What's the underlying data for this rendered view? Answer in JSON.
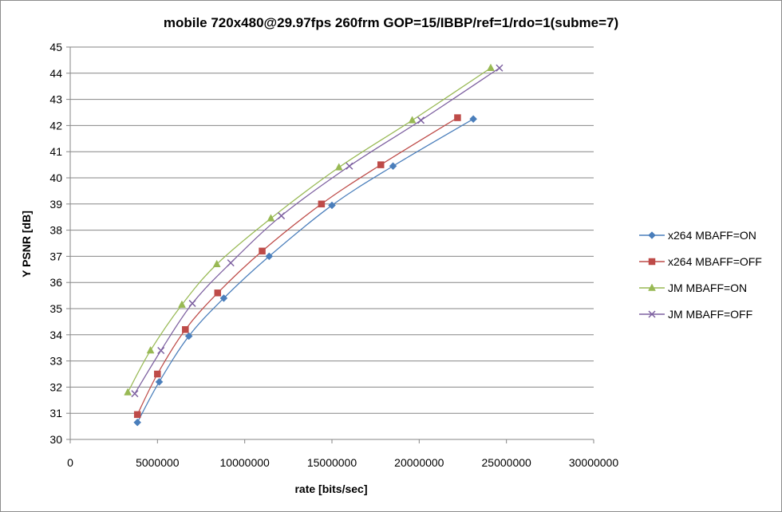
{
  "chart_data": {
    "type": "scatter",
    "title": "mobile 720x480@29.97fps  260frm GOP=15/IBBP/ref=1/rdo=1(subme=7)",
    "xlabel": "rate [bits/sec]",
    "ylabel": "Y PSNR [dB]",
    "xlim": [
      0,
      30000000
    ],
    "ylim": [
      30,
      45
    ],
    "xticks": [
      0,
      5000000,
      10000000,
      15000000,
      20000000,
      25000000,
      30000000
    ],
    "xtick_labels": [
      "0",
      "5000000",
      "10000000",
      "15000000",
      "20000000",
      "25000000",
      "30000000"
    ],
    "yticks": [
      30,
      31,
      32,
      33,
      34,
      35,
      36,
      37,
      38,
      39,
      40,
      41,
      42,
      43,
      44,
      45
    ],
    "ytick_labels": [
      "30",
      "31",
      "32",
      "33",
      "34",
      "35",
      "36",
      "37",
      "38",
      "39",
      "40",
      "41",
      "42",
      "43",
      "44",
      "45"
    ],
    "grid": "horizontal",
    "legend_position": "right",
    "series": [
      {
        "name": "x264 MBAFF=ON",
        "color": "#4a7ebb",
        "marker": "diamond",
        "x": [
          3850000,
          5100000,
          6800000,
          8800000,
          11400000,
          15000000,
          18500000,
          23100000
        ],
        "y": [
          30.65,
          32.2,
          33.95,
          35.4,
          37.0,
          38.95,
          40.45,
          42.25
        ]
      },
      {
        "name": "x264 MBAFF=OFF",
        "color": "#be4b48",
        "marker": "square",
        "x": [
          3850000,
          5000000,
          6600000,
          8450000,
          11000000,
          14400000,
          17800000,
          22200000
        ],
        "y": [
          30.95,
          32.5,
          34.2,
          35.6,
          37.2,
          39.0,
          40.5,
          42.3
        ]
      },
      {
        "name": "JM MBAFF=ON",
        "color": "#98b954",
        "marker": "triangle",
        "x": [
          3300000,
          4600000,
          6400000,
          8400000,
          11500000,
          15400000,
          19600000,
          24100000
        ],
        "y": [
          31.8,
          33.4,
          35.15,
          36.7,
          38.45,
          40.4,
          42.2,
          44.2
        ]
      },
      {
        "name": "JM MBAFF=OFF",
        "color": "#7d60a0",
        "marker": "x",
        "x": [
          3700000,
          5200000,
          7000000,
          9200000,
          12100000,
          16000000,
          20100000,
          24600000
        ],
        "y": [
          31.75,
          33.4,
          35.2,
          36.75,
          38.55,
          40.45,
          42.2,
          44.2
        ]
      }
    ]
  }
}
